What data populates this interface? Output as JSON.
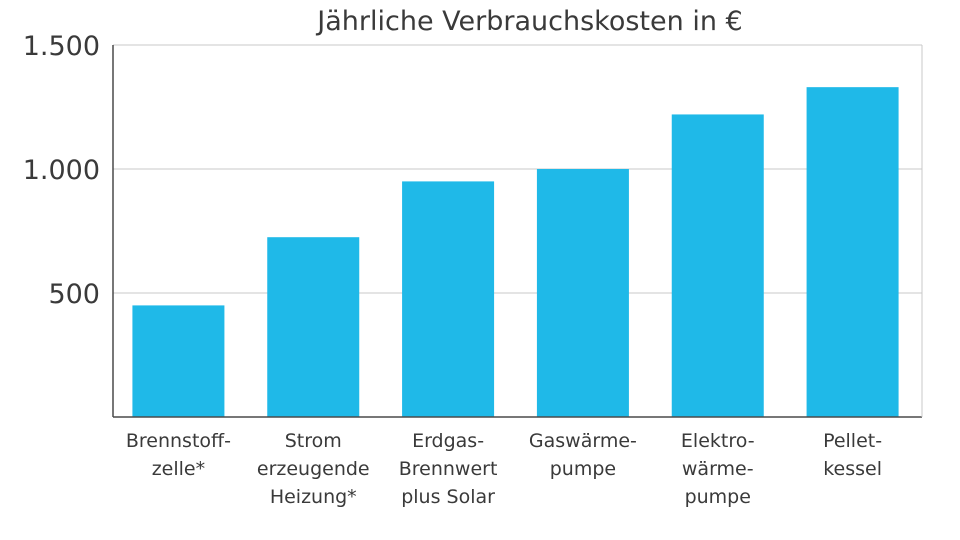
{
  "chart_data": {
    "type": "bar",
    "title": "Jährliche Verbrauchskosten in €",
    "categories": [
      [
        "Brennstoff-",
        "zelle*"
      ],
      [
        "Strom",
        "erzeugende",
        "Heizung*"
      ],
      [
        "Erdgas-",
        "Brennwert",
        "plus Solar"
      ],
      [
        "Gaswärme-",
        "pumpe"
      ],
      [
        "Elektro-",
        "wärme-",
        "pumpe"
      ],
      [
        "Pellet-",
        "kessel"
      ]
    ],
    "values": [
      450,
      725,
      950,
      1000,
      1220,
      1330
    ],
    "ylim": [
      0,
      1500
    ],
    "yticks": [
      500,
      1000,
      1500
    ],
    "ytick_labels": [
      "500",
      "1.000",
      "1.500"
    ],
    "grid": true,
    "bar_color": "#1fb9e8",
    "xlabel": "",
    "ylabel": ""
  }
}
